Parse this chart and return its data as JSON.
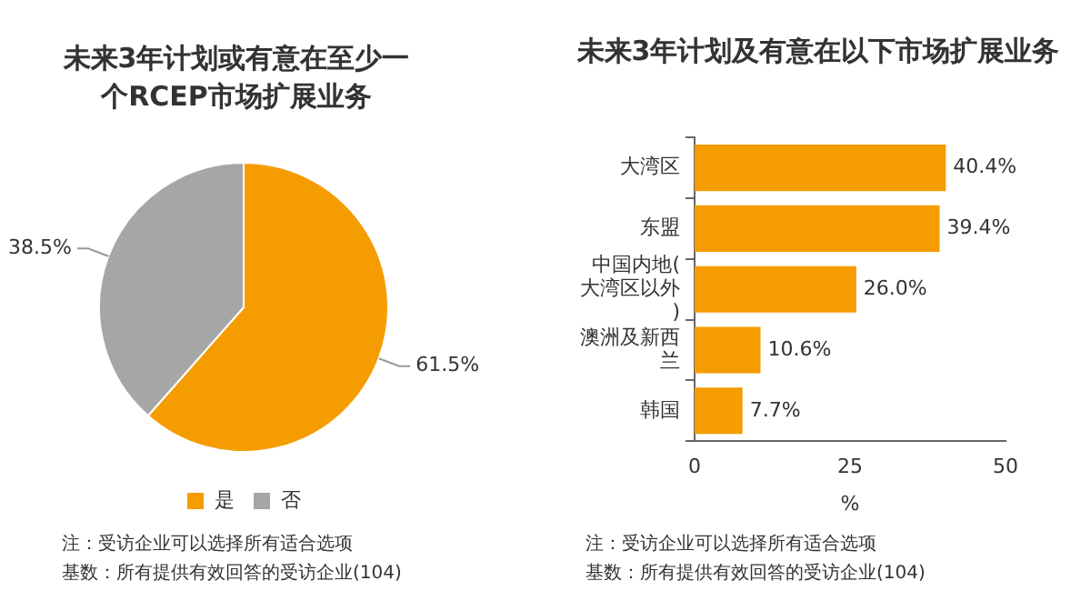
{
  "chart_data": [
    {
      "type": "pie",
      "title": "未来3年计划或有意在至少一个RCEP市场扩展业务",
      "categories": [
        "是",
        "否"
      ],
      "values": [
        61.5,
        38.5
      ],
      "colors": [
        "#f59c00",
        "#a6a6a6"
      ],
      "value_labels": [
        "61.5%",
        "38.5%"
      ],
      "legend": "bottom",
      "annotations": [
        "注：受访企业可以选择所有适合选项",
        "基数：所有提供有效回答的受访企业(104)"
      ]
    },
    {
      "type": "bar",
      "orientation": "horizontal",
      "title": "未来3年计划及有意在以下市场扩展业务",
      "categories": [
        "大湾区",
        "东盟",
        "中国内地(大湾区以外)",
        "澳洲及新西兰",
        "韩国"
      ],
      "values": [
        40.4,
        39.4,
        26.0,
        10.6,
        7.7
      ],
      "color": "#f59c00",
      "value_labels": [
        "40.4%",
        "39.4%",
        "26.0%",
        "10.6%",
        "7.7%"
      ],
      "xlabel": "%",
      "xlim": [
        0,
        50
      ],
      "xticks": [
        0,
        25,
        50
      ],
      "grid": false,
      "legend": false,
      "annotations": [
        "注：受访企业可以选择所有适合选项",
        "基数：所有提供有效回答的受访企业(104)"
      ]
    }
  ]
}
